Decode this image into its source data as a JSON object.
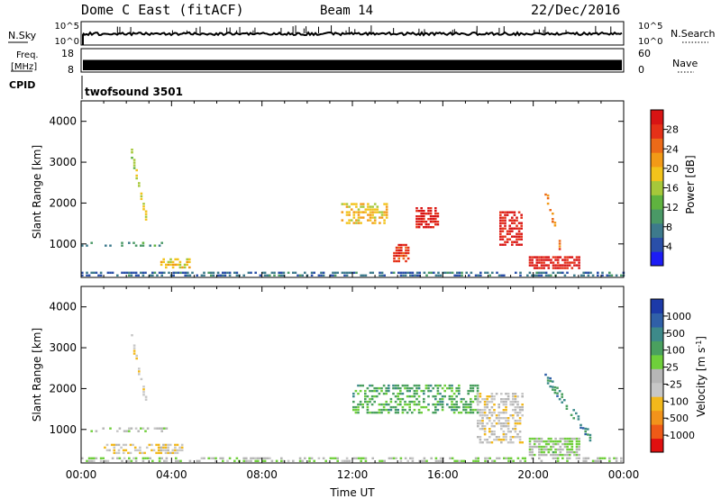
{
  "header": {
    "station": "Dome C East (fitACF)",
    "beam": "Beam 14",
    "date": "22/Dec/2016"
  },
  "status_panels": {
    "nsky": {
      "label": "N.Sky",
      "ticks": [
        "10^5",
        "10^0"
      ]
    },
    "nsearch": {
      "label": "N.Search",
      "ticks": [
        "10^5",
        "10^0"
      ]
    },
    "freq": {
      "label": "Freq.",
      "unit": "[MHz]",
      "ticks": [
        "18",
        "8"
      ]
    },
    "nave": {
      "label": "Nave",
      "ticks": [
        "60",
        "0"
      ]
    },
    "cpid": {
      "label": "CPID",
      "program": "twofsound 3501"
    }
  },
  "colors": {
    "power": [
      "#1c1cf5",
      "#2a4fa8",
      "#3d7a8c",
      "#4a9966",
      "#5fb33f",
      "#a6c83a",
      "#f2c31b",
      "#f29a17",
      "#ec6a18",
      "#e53118",
      "#d81414"
    ],
    "velocity": [
      "#e01010",
      "#ee5a17",
      "#f2931b",
      "#f2b81b",
      "#c7c7c7",
      "#b6b6b6",
      "#6fcf3b",
      "#4aa05f",
      "#3d8a8a",
      "#3060a8",
      "#1c3aa8"
    ]
  },
  "chart_data": [
    {
      "type": "heatmap",
      "name": "power",
      "ylabel": "Slant Range [km]",
      "yticks": [
        "4000",
        "3000",
        "2000",
        "1000"
      ],
      "ylim": [
        180,
        4500
      ],
      "xlim": [
        0,
        24
      ],
      "colorbar": {
        "label": "Power [dB]",
        "ticks": [
          "28",
          "24",
          "20",
          "16",
          "12",
          "8",
          "4"
        ],
        "range": [
          0,
          30
        ]
      },
      "features": [
        {
          "t": [
            0.0,
            24.0
          ],
          "r": [
            200,
            320
          ],
          "level": 6,
          "density": 0.55
        },
        {
          "t": [
            0.0,
            4.0
          ],
          "r": [
            950,
            1050
          ],
          "level": 9,
          "density": 0.35
        },
        {
          "t": [
            2.2,
            2.9
          ],
          "r": [
            1500,
            3200
          ],
          "level": 16,
          "density": 0.7,
          "slant": true
        },
        {
          "t": [
            3.5,
            4.8
          ],
          "r": [
            450,
            650
          ],
          "level": 18,
          "density": 0.6
        },
        {
          "t": [
            11.5,
            13.5
          ],
          "r": [
            1500,
            2000
          ],
          "level": 18,
          "density": 0.5
        },
        {
          "t": [
            13.8,
            14.5
          ],
          "r": [
            600,
            1000
          ],
          "level": 26,
          "density": 0.7
        },
        {
          "t": [
            14.8,
            15.8
          ],
          "r": [
            1400,
            1900
          ],
          "level": 28,
          "density": 0.7
        },
        {
          "t": [
            18.5,
            19.5
          ],
          "r": [
            1000,
            1800
          ],
          "level": 28,
          "density": 0.7
        },
        {
          "t": [
            19.8,
            22.0
          ],
          "r": [
            400,
            700
          ],
          "level": 28,
          "density": 0.75
        },
        {
          "t": [
            20.5,
            21.2
          ],
          "r": [
            800,
            2300
          ],
          "level": 22,
          "density": 0.6,
          "slant": true
        }
      ]
    },
    {
      "type": "heatmap",
      "name": "velocity",
      "ylabel": "Slant Range [km]",
      "yticks": [
        "4000",
        "3000",
        "2000",
        "1000"
      ],
      "ylim": [
        180,
        4500
      ],
      "xlim": [
        0,
        24
      ],
      "xlabel": "Time UT",
      "xticks": [
        "00:00",
        "04:00",
        "08:00",
        "12:00",
        "16:00",
        "20:00",
        "00:00"
      ],
      "colorbar": {
        "label": "Velocity [m s",
        "label_sup": "-1",
        "ticks": [
          "1000",
          "500",
          "100",
          "25",
          "-25",
          "-100",
          "-500",
          "-1000"
        ],
        "range": [
          -1200,
          1200
        ]
      },
      "features": [
        {
          "t": [
            0.0,
            24.0
          ],
          "r": [
            200,
            320
          ],
          "level": 60,
          "density": 0.45
        },
        {
          "t": [
            0.0,
            4.0
          ],
          "r": [
            950,
            1050
          ],
          "level": 0,
          "density": 0.3
        },
        {
          "t": [
            2.2,
            2.9
          ],
          "r": [
            1500,
            3200
          ],
          "level": -300,
          "density": 0.7,
          "slant": true
        },
        {
          "t": [
            1.0,
            4.5
          ],
          "r": [
            400,
            650
          ],
          "level": -300,
          "density": 0.6
        },
        {
          "t": [
            12.0,
            17.5
          ],
          "r": [
            1400,
            2100
          ],
          "level": 400,
          "density": 0.5
        },
        {
          "t": [
            17.5,
            19.5
          ],
          "r": [
            700,
            1900
          ],
          "level": -200,
          "density": 0.55
        },
        {
          "t": [
            19.8,
            22.0
          ],
          "r": [
            400,
            800
          ],
          "level": 120,
          "density": 0.7
        },
        {
          "t": [
            20.5,
            22.5
          ],
          "r": [
            800,
            2300
          ],
          "level": 600,
          "density": 0.5,
          "slant": true
        }
      ]
    }
  ]
}
